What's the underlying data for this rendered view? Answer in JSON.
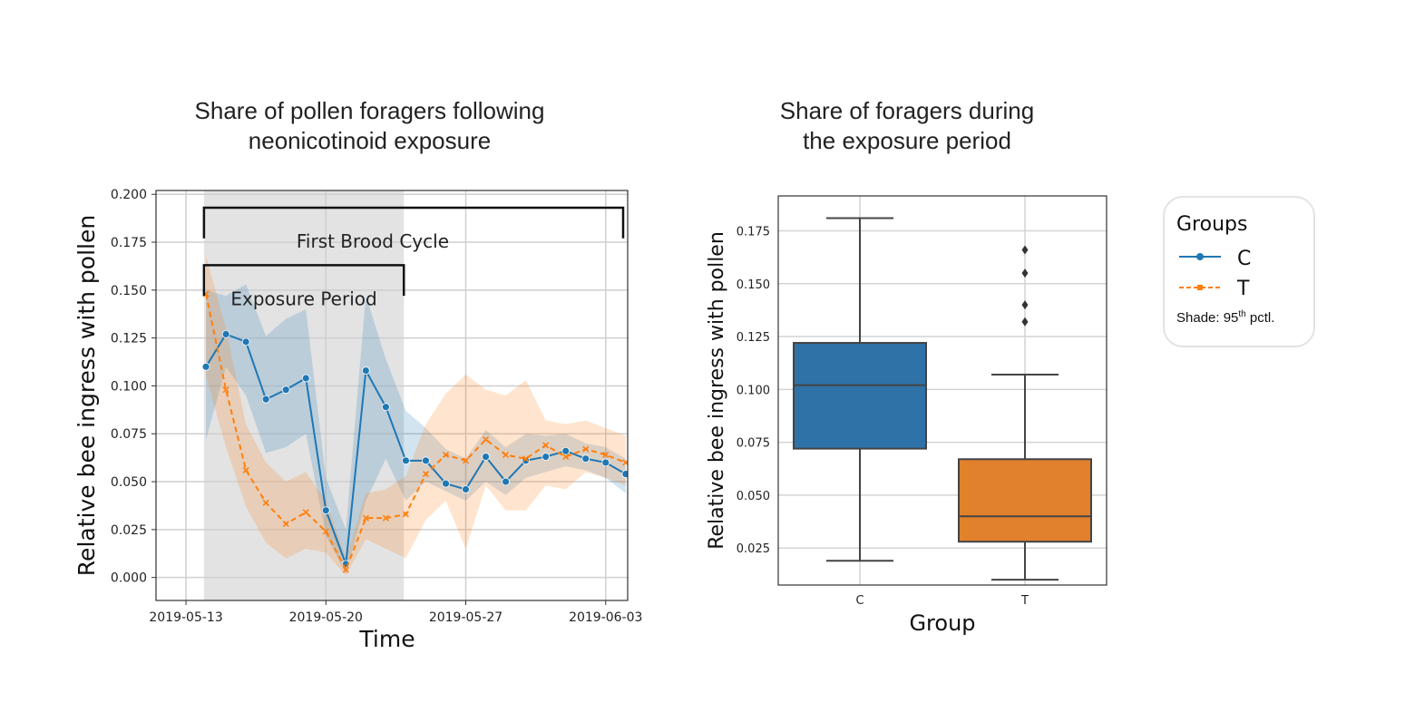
{
  "titles": {
    "left": [
      "Share of pollen foragers following",
      "neonicotinoid exposure"
    ],
    "right": [
      "Share of foragers during",
      "the exposure period"
    ]
  },
  "legend": {
    "title": "Groups",
    "items": [
      {
        "label": "C",
        "color": "#1f77b4",
        "marker": "circle",
        "dash": false
      },
      {
        "label": "T",
        "color": "#ff7f0e",
        "marker": "x",
        "dash": true
      }
    ],
    "note_prefix": "Shade: 95",
    "note_sup": "th",
    "note_suffix": " pctl."
  },
  "chart_data": [
    {
      "type": "line",
      "title": "Share of pollen foragers following neonicotinoid exposure",
      "xlabel": "Time",
      "ylabel": "Relative bee ingress with pollen",
      "x_start": "2019-05-13",
      "xlim": [
        -1.5,
        22.1
      ],
      "ylim": [
        -0.012,
        0.202
      ],
      "x_ticks": [
        {
          "day": 0,
          "label": "2019-05-13"
        },
        {
          "day": 7,
          "label": "2019-05-20"
        },
        {
          "day": 14,
          "label": "2019-05-27"
        },
        {
          "day": 21,
          "label": "2019-06-03"
        }
      ],
      "y_ticks": [
        "0.000",
        "0.025",
        "0.050",
        "0.075",
        "0.100",
        "0.125",
        "0.150",
        "0.175",
        "0.200"
      ],
      "exposure_shade": [
        0.9,
        10.9
      ],
      "annotations": [
        {
          "label": "First Brood Cycle",
          "from": 0.9,
          "to": 22.1,
          "y": 0.193,
          "tick_to": 0.177
        },
        {
          "label": "Exposure Period",
          "from": 0.9,
          "to": 10.9,
          "y": 0.163,
          "tick_to": 0.147
        }
      ],
      "series": [
        {
          "name": "C",
          "color": "#1f77b4",
          "days": [
            1,
            2,
            3,
            4,
            5,
            6,
            7,
            8,
            9,
            10,
            11,
            12,
            13,
            14,
            15,
            16,
            17,
            18,
            19,
            20,
            21,
            22
          ],
          "values": [
            0.11,
            0.127,
            0.123,
            0.093,
            0.098,
            0.104,
            0.035,
            0.007,
            0.108,
            0.089,
            0.061,
            0.061,
            0.049,
            0.046,
            0.063,
            0.05,
            0.061,
            0.063,
            0.066,
            0.062,
            0.06,
            0.054
          ],
          "lower": [
            0.072,
            0.11,
            0.095,
            0.065,
            0.068,
            0.075,
            0.022,
            0.002,
            0.04,
            0.062,
            0.04,
            0.05,
            0.045,
            0.04,
            0.05,
            0.043,
            0.052,
            0.055,
            0.058,
            0.056,
            0.052,
            0.044
          ],
          "upper": [
            0.15,
            0.147,
            0.153,
            0.126,
            0.135,
            0.14,
            0.052,
            0.025,
            0.147,
            0.114,
            0.087,
            0.078,
            0.067,
            0.062,
            0.077,
            0.068,
            0.075,
            0.074,
            0.075,
            0.07,
            0.068,
            0.062
          ]
        },
        {
          "name": "T",
          "color": "#ff7f0e",
          "days": [
            1,
            2,
            3,
            4,
            5,
            6,
            7,
            8,
            9,
            10,
            11,
            12,
            13,
            14,
            15,
            16,
            17,
            18,
            19,
            20,
            21,
            22
          ],
          "values": [
            0.148,
            0.098,
            0.056,
            0.039,
            0.028,
            0.034,
            0.024,
            0.004,
            0.031,
            0.031,
            0.033,
            0.054,
            0.064,
            0.061,
            0.072,
            0.064,
            0.062,
            0.069,
            0.063,
            0.067,
            0.064,
            0.06
          ],
          "lower": [
            0.105,
            0.068,
            0.037,
            0.018,
            0.01,
            0.015,
            0.013,
            0.001,
            0.02,
            0.015,
            0.01,
            0.03,
            0.04,
            0.015,
            0.048,
            0.035,
            0.035,
            0.048,
            0.046,
            0.055,
            0.052,
            0.048
          ],
          "upper": [
            0.168,
            0.13,
            0.08,
            0.06,
            0.05,
            0.055,
            0.04,
            0.01,
            0.044,
            0.046,
            0.053,
            0.08,
            0.096,
            0.106,
            0.098,
            0.095,
            0.103,
            0.082,
            0.08,
            0.082,
            0.078,
            0.074
          ]
        }
      ]
    },
    {
      "type": "box",
      "title": "Share of foragers during the exposure period",
      "xlabel": "Group",
      "ylabel": "Relative bee ingress with pollen",
      "ylim": [
        0.0075,
        0.1915
      ],
      "y_ticks": [
        "0.025",
        "0.050",
        "0.075",
        "0.100",
        "0.125",
        "0.150",
        "0.175"
      ],
      "groups": [
        {
          "label": "C",
          "color": "#2e72a8",
          "whisker_low": 0.019,
          "q1": 0.072,
          "median": 0.102,
          "q3": 0.122,
          "whisker_high": 0.181,
          "outliers": []
        },
        {
          "label": "T",
          "color": "#e1812c",
          "whisker_low": 0.01,
          "q1": 0.028,
          "median": 0.04,
          "q3": 0.067,
          "whisker_high": 0.107,
          "outliers": [
            0.132,
            0.14,
            0.155,
            0.166
          ]
        }
      ]
    }
  ]
}
